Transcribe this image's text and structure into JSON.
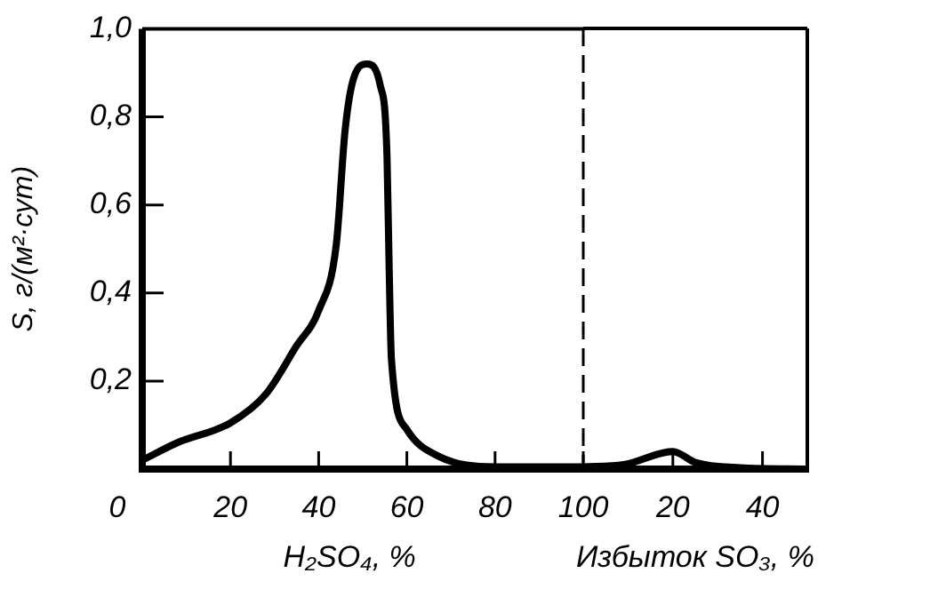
{
  "chart_data": [
    {
      "type": "line",
      "ylabel": "S, г/(м²·сут)",
      "xlabel": "H₂SO₄, %",
      "series": [
        {
          "color": "#000000",
          "x": [
            0,
            8,
            20,
            28,
            35,
            40,
            44,
            46,
            48,
            51,
            54,
            55.5,
            56,
            56.5,
            60,
            67,
            80,
            100
          ],
          "values": [
            0.02,
            0.06,
            0.105,
            0.17,
            0.28,
            0.36,
            0.51,
            0.77,
            0.89,
            0.92,
            0.87,
            0.71,
            0.45,
            0.25,
            0.09,
            0.03,
            0.005,
            0.005
          ]
        }
      ],
      "xlim": [
        0,
        100
      ],
      "xticks": [
        0,
        20,
        40,
        60,
        80,
        100
      ],
      "ylim": [
        0,
        1
      ],
      "yticks": [
        {
          "value": 0.2,
          "label": "0,2"
        },
        {
          "value": 0.4,
          "label": "0,4"
        },
        {
          "value": 0.6,
          "label": "0,6"
        },
        {
          "value": 0.8,
          "label": "0,8"
        },
        {
          "value": 1,
          "label": "1,0"
        }
      ],
      "grid": false,
      "legend": false,
      "marker": "none",
      "line_style": "solid"
    },
    {
      "type": "line",
      "xlabel": "Избыток SO₃, %",
      "series": [
        {
          "color": "#000000",
          "x": [
            0,
            9,
            20,
            25,
            35,
            50
          ],
          "values": [
            0.005,
            0.01,
            0.04,
            0.015,
            0.003,
            0
          ]
        }
      ],
      "xlim": [
        0,
        50
      ],
      "xticks": [
        20,
        40
      ],
      "ylim": [
        0,
        1
      ],
      "tick_labels": "x",
      "ref_lines": [
        {
          "axis": "x",
          "value": 0,
          "line_style": "dashed"
        }
      ],
      "grid": false,
      "legend": false,
      "marker": "none",
      "line_style": "solid"
    }
  ]
}
